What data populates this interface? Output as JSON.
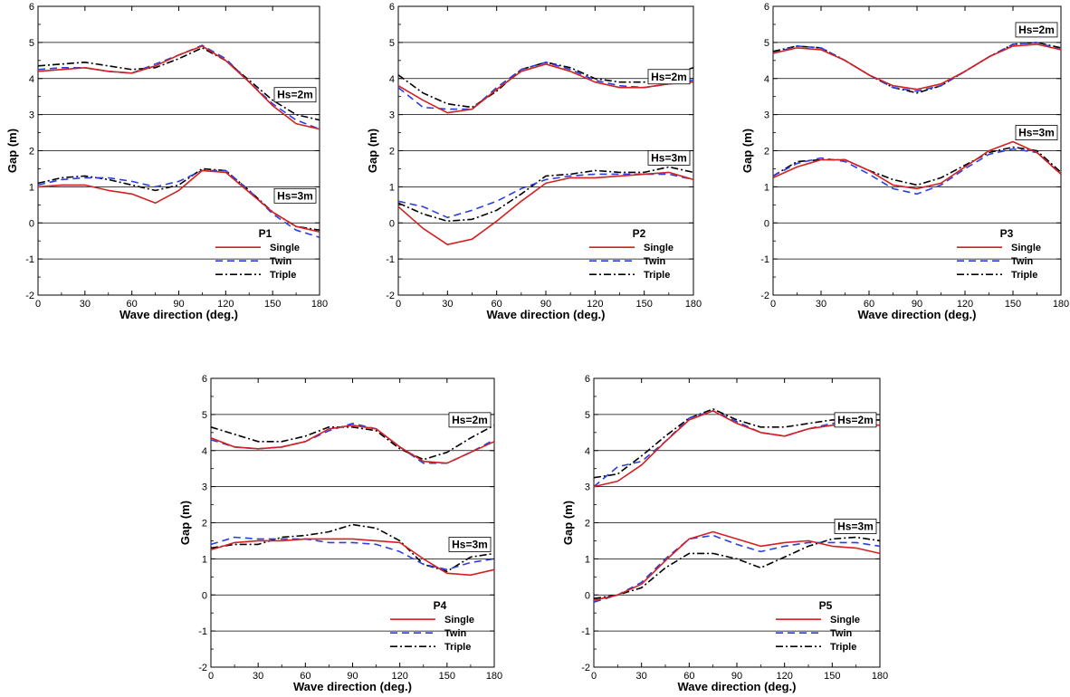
{
  "figure": {
    "xlabel": "Wave direction (deg.)",
    "ylabel": "Gap (m)",
    "xticks": [
      0,
      30,
      60,
      90,
      120,
      150,
      180
    ],
    "yticks": [
      -2,
      -1,
      0,
      1,
      2,
      3,
      4,
      5,
      6
    ],
    "hs_labels": [
      "Hs=2m",
      "Hs=3m"
    ],
    "legend": [
      "Single",
      "Twin",
      "Triple"
    ],
    "series_styles": {
      "Single": {
        "color": "#d42020",
        "dash": ""
      },
      "Twin": {
        "color": "#2a3fe0",
        "dash": "8,5"
      },
      "Triple": {
        "color": "#000000",
        "dash": "8,3,2,3"
      }
    },
    "panels": [
      "P1",
      "P2",
      "P3",
      "P4",
      "P5"
    ]
  },
  "chart_data": [
    {
      "type": "line",
      "title": "P1",
      "xlabel": "Wave direction (deg.)",
      "ylabel": "Gap (m)",
      "xlim": [
        0,
        180
      ],
      "ylim": [
        -2,
        6
      ],
      "x": [
        0,
        15,
        30,
        45,
        60,
        75,
        90,
        105,
        120,
        135,
        150,
        165,
        180
      ],
      "series": [
        {
          "name": "Single",
          "group": "Hs=2m",
          "values": [
            4.2,
            4.25,
            4.3,
            4.2,
            4.15,
            4.35,
            4.65,
            4.9,
            4.5,
            3.9,
            3.25,
            2.75,
            2.6
          ]
        },
        {
          "name": "Twin",
          "group": "Hs=2m",
          "values": [
            4.25,
            4.3,
            4.3,
            4.2,
            4.15,
            4.4,
            4.65,
            4.92,
            4.55,
            3.9,
            3.3,
            2.85,
            2.6
          ]
        },
        {
          "name": "Triple",
          "group": "Hs=2m",
          "values": [
            4.35,
            4.4,
            4.45,
            4.35,
            4.25,
            4.3,
            4.55,
            4.85,
            4.5,
            3.95,
            3.4,
            3.0,
            2.85
          ]
        },
        {
          "name": "Single",
          "group": "Hs=3m",
          "values": [
            1.0,
            1.05,
            1.05,
            0.9,
            0.8,
            0.55,
            0.9,
            1.45,
            1.4,
            0.85,
            0.3,
            -0.1,
            -0.25
          ]
        },
        {
          "name": "Twin",
          "group": "Hs=3m",
          "values": [
            1.05,
            1.2,
            1.25,
            1.25,
            1.15,
            1.0,
            1.15,
            1.45,
            1.45,
            0.9,
            0.25,
            -0.2,
            -0.4
          ]
        },
        {
          "name": "Triple",
          "group": "Hs=3m",
          "values": [
            1.1,
            1.25,
            1.3,
            1.2,
            1.05,
            0.9,
            1.05,
            1.5,
            1.45,
            0.9,
            0.3,
            -0.1,
            -0.2
          ]
        }
      ]
    },
    {
      "type": "line",
      "title": "P2",
      "xlabel": "Wave direction (deg.)",
      "ylabel": "Gap (m)",
      "xlim": [
        0,
        180
      ],
      "ylim": [
        -2,
        6
      ],
      "x": [
        0,
        15,
        30,
        45,
        60,
        75,
        90,
        105,
        120,
        135,
        150,
        165,
        180
      ],
      "series": [
        {
          "name": "Single",
          "group": "Hs=2m",
          "values": [
            3.8,
            3.4,
            3.05,
            3.15,
            3.7,
            4.2,
            4.4,
            4.2,
            3.9,
            3.75,
            3.75,
            3.85,
            3.9
          ]
        },
        {
          "name": "Twin",
          "group": "Hs=2m",
          "values": [
            3.75,
            3.2,
            3.15,
            3.15,
            3.75,
            4.25,
            4.45,
            4.25,
            3.95,
            3.8,
            3.75,
            3.85,
            3.95
          ]
        },
        {
          "name": "Triple",
          "group": "Hs=2m",
          "values": [
            4.1,
            3.6,
            3.3,
            3.2,
            3.65,
            4.25,
            4.45,
            4.3,
            4.0,
            3.9,
            3.9,
            4.1,
            4.3
          ]
        },
        {
          "name": "Single",
          "group": "Hs=3m",
          "values": [
            0.45,
            -0.15,
            -0.6,
            -0.45,
            0.05,
            0.6,
            1.1,
            1.25,
            1.25,
            1.3,
            1.35,
            1.4,
            1.2
          ]
        },
        {
          "name": "Twin",
          "group": "Hs=3m",
          "values": [
            0.6,
            0.45,
            0.15,
            0.35,
            0.6,
            0.95,
            1.2,
            1.3,
            1.35,
            1.35,
            1.35,
            1.35,
            1.2
          ]
        },
        {
          "name": "Triple",
          "group": "Hs=3m",
          "values": [
            0.55,
            0.25,
            0.05,
            0.1,
            0.35,
            0.8,
            1.3,
            1.35,
            1.45,
            1.4,
            1.4,
            1.55,
            1.4
          ]
        }
      ]
    },
    {
      "type": "line",
      "title": "P3",
      "xlabel": "Wave direction (deg.)",
      "ylabel": "Gap (m)",
      "xlim": [
        0,
        180
      ],
      "ylim": [
        -2,
        6
      ],
      "x": [
        0,
        15,
        30,
        45,
        60,
        75,
        90,
        105,
        120,
        135,
        150,
        165,
        180
      ],
      "series": [
        {
          "name": "Single",
          "group": "Hs=2m",
          "values": [
            4.7,
            4.85,
            4.8,
            4.5,
            4.1,
            3.8,
            3.7,
            3.85,
            4.2,
            4.6,
            4.9,
            4.95,
            4.8
          ]
        },
        {
          "name": "Twin",
          "group": "Hs=2m",
          "values": [
            4.7,
            4.9,
            4.85,
            4.5,
            4.1,
            3.75,
            3.65,
            3.8,
            4.2,
            4.6,
            4.95,
            5.0,
            4.8
          ]
        },
        {
          "name": "Triple",
          "group": "Hs=2m",
          "values": [
            4.75,
            4.9,
            4.85,
            4.5,
            4.1,
            3.75,
            3.6,
            3.8,
            4.2,
            4.6,
            4.95,
            5.0,
            4.85
          ]
        },
        {
          "name": "Single",
          "group": "Hs=3m",
          "values": [
            1.25,
            1.55,
            1.75,
            1.75,
            1.45,
            1.05,
            0.95,
            1.1,
            1.55,
            2.0,
            2.25,
            1.95,
            1.35
          ]
        },
        {
          "name": "Twin",
          "group": "Hs=3m",
          "values": [
            1.3,
            1.65,
            1.8,
            1.7,
            1.35,
            0.95,
            0.8,
            1.05,
            1.5,
            1.9,
            2.05,
            1.95,
            1.35
          ]
        },
        {
          "name": "Triple",
          "group": "Hs=3m",
          "values": [
            1.3,
            1.7,
            1.75,
            1.75,
            1.45,
            1.2,
            1.05,
            1.25,
            1.6,
            1.95,
            2.1,
            2.0,
            1.4
          ]
        }
      ]
    },
    {
      "type": "line",
      "title": "P4",
      "xlabel": "Wave direction (deg.)",
      "ylabel": "Gap (m)",
      "xlim": [
        0,
        180
      ],
      "ylim": [
        -2,
        6
      ],
      "x": [
        0,
        15,
        30,
        45,
        60,
        75,
        90,
        105,
        120,
        135,
        150,
        165,
        180
      ],
      "series": [
        {
          "name": "Single",
          "group": "Hs=2m",
          "values": [
            4.35,
            4.1,
            4.05,
            4.1,
            4.25,
            4.6,
            4.7,
            4.6,
            4.1,
            3.7,
            3.65,
            3.95,
            4.25
          ]
        },
        {
          "name": "Twin",
          "group": "Hs=2m",
          "values": [
            4.3,
            4.1,
            4.05,
            4.1,
            4.25,
            4.55,
            4.75,
            4.6,
            4.1,
            3.65,
            3.65,
            3.95,
            4.3
          ]
        },
        {
          "name": "Triple",
          "group": "Hs=2m",
          "values": [
            4.65,
            4.45,
            4.25,
            4.25,
            4.4,
            4.65,
            4.65,
            4.55,
            4.05,
            3.75,
            3.95,
            4.35,
            4.7
          ]
        },
        {
          "name": "Single",
          "group": "Hs=3m",
          "values": [
            1.25,
            1.45,
            1.5,
            1.5,
            1.55,
            1.55,
            1.55,
            1.5,
            1.45,
            1.0,
            0.6,
            0.55,
            0.7
          ]
        },
        {
          "name": "Twin",
          "group": "Hs=3m",
          "values": [
            1.4,
            1.6,
            1.55,
            1.55,
            1.55,
            1.45,
            1.45,
            1.4,
            1.2,
            0.85,
            0.7,
            0.9,
            1.0
          ]
        },
        {
          "name": "Triple",
          "group": "Hs=3m",
          "values": [
            1.3,
            1.4,
            1.4,
            1.6,
            1.65,
            1.75,
            1.95,
            1.85,
            1.5,
            0.85,
            0.65,
            1.05,
            1.15
          ]
        }
      ]
    },
    {
      "type": "line",
      "title": "P5",
      "xlabel": "Wave direction (deg.)",
      "ylabel": "Gap (m)",
      "xlim": [
        0,
        180
      ],
      "ylim": [
        -2,
        6
      ],
      "x": [
        0,
        15,
        30,
        45,
        60,
        75,
        90,
        105,
        120,
        135,
        150,
        165,
        180
      ],
      "series": [
        {
          "name": "Single",
          "group": "Hs=2m",
          "values": [
            3.0,
            3.15,
            3.6,
            4.25,
            4.85,
            5.1,
            4.75,
            4.5,
            4.4,
            4.6,
            4.7,
            4.75,
            4.7
          ]
        },
        {
          "name": "Twin",
          "group": "Hs=2m",
          "values": [
            3.0,
            3.55,
            3.7,
            4.25,
            4.9,
            5.1,
            4.8,
            4.5,
            4.4,
            4.6,
            4.75,
            4.8,
            4.7
          ]
        },
        {
          "name": "Triple",
          "group": "Hs=2m",
          "values": [
            3.25,
            3.35,
            3.85,
            4.4,
            4.9,
            5.15,
            4.85,
            4.65,
            4.65,
            4.75,
            4.85,
            4.85,
            4.85
          ]
        },
        {
          "name": "Single",
          "group": "Hs=3m",
          "values": [
            -0.15,
            0.0,
            0.3,
            0.95,
            1.55,
            1.75,
            1.55,
            1.35,
            1.45,
            1.5,
            1.35,
            1.3,
            1.15
          ]
        },
        {
          "name": "Twin",
          "group": "Hs=3m",
          "values": [
            -0.2,
            0.0,
            0.35,
            1.0,
            1.55,
            1.65,
            1.4,
            1.2,
            1.35,
            1.45,
            1.45,
            1.45,
            1.35
          ]
        },
        {
          "name": "Triple",
          "group": "Hs=3m",
          "values": [
            -0.1,
            0.0,
            0.2,
            0.75,
            1.15,
            1.15,
            1.0,
            0.75,
            1.05,
            1.35,
            1.55,
            1.6,
            1.5
          ]
        }
      ]
    }
  ]
}
